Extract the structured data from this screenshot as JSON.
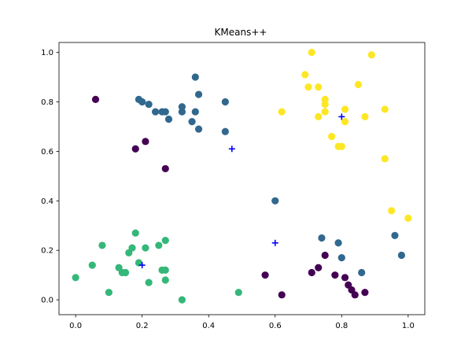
{
  "chart_data": {
    "type": "scatter",
    "title": "KMeans++",
    "xlabel": "",
    "ylabel": "",
    "xlim": [
      -0.05,
      1.05
    ],
    "ylim": [
      -0.06,
      1.04
    ],
    "x_ticks": [
      0.0,
      0.2,
      0.4,
      0.6,
      0.8,
      1.0
    ],
    "x_tick_labels": [
      "0.0",
      "0.2",
      "0.4",
      "0.6",
      "0.8",
      "1.0"
    ],
    "y_ticks": [
      0.0,
      0.2,
      0.4,
      0.6,
      0.8,
      1.0
    ],
    "y_tick_labels": [
      "0.0",
      "0.2",
      "0.4",
      "0.6",
      "0.8",
      "1.0"
    ],
    "grid": false,
    "series": [
      {
        "color": "#440154",
        "points": [
          [
            0.06,
            0.81
          ],
          [
            0.18,
            0.61
          ],
          [
            0.21,
            0.64
          ],
          [
            0.27,
            0.53
          ],
          [
            0.57,
            0.1
          ],
          [
            0.62,
            0.02
          ],
          [
            0.71,
            0.11
          ],
          [
            0.73,
            0.13
          ],
          [
            0.75,
            0.18
          ],
          [
            0.78,
            0.1
          ],
          [
            0.81,
            0.09
          ],
          [
            0.82,
            0.06
          ],
          [
            0.83,
            0.04
          ],
          [
            0.84,
            0.02
          ],
          [
            0.87,
            0.03
          ]
        ]
      },
      {
        "color": "#31688e",
        "points": [
          [
            0.19,
            0.81
          ],
          [
            0.2,
            0.8
          ],
          [
            0.22,
            0.79
          ],
          [
            0.24,
            0.76
          ],
          [
            0.26,
            0.76
          ],
          [
            0.27,
            0.76
          ],
          [
            0.28,
            0.73
          ],
          [
            0.32,
            0.78
          ],
          [
            0.32,
            0.76
          ],
          [
            0.35,
            0.72
          ],
          [
            0.36,
            0.9
          ],
          [
            0.36,
            0.76
          ],
          [
            0.37,
            0.83
          ],
          [
            0.37,
            0.69
          ],
          [
            0.45,
            0.8
          ],
          [
            0.45,
            0.68
          ],
          [
            0.6,
            0.4
          ],
          [
            0.74,
            0.25
          ],
          [
            0.79,
            0.23
          ],
          [
            0.8,
            0.17
          ],
          [
            0.86,
            0.11
          ],
          [
            0.96,
            0.26
          ],
          [
            0.98,
            0.18
          ]
        ]
      },
      {
        "color": "#35b779",
        "points": [
          [
            0.0,
            0.09
          ],
          [
            0.05,
            0.14
          ],
          [
            0.08,
            0.22
          ],
          [
            0.1,
            0.03
          ],
          [
            0.13,
            0.13
          ],
          [
            0.14,
            0.11
          ],
          [
            0.15,
            0.11
          ],
          [
            0.16,
            0.19
          ],
          [
            0.17,
            0.21
          ],
          [
            0.18,
            0.27
          ],
          [
            0.19,
            0.15
          ],
          [
            0.21,
            0.21
          ],
          [
            0.22,
            0.07
          ],
          [
            0.25,
            0.22
          ],
          [
            0.26,
            0.12
          ],
          [
            0.27,
            0.12
          ],
          [
            0.27,
            0.08
          ],
          [
            0.27,
            0.24
          ],
          [
            0.32,
            0.0
          ],
          [
            0.49,
            0.03
          ]
        ]
      },
      {
        "color": "#fde725",
        "points": [
          [
            0.62,
            0.76
          ],
          [
            0.69,
            0.91
          ],
          [
            0.7,
            0.86
          ],
          [
            0.71,
            1.0
          ],
          [
            0.73,
            0.74
          ],
          [
            0.73,
            0.86
          ],
          [
            0.75,
            0.81
          ],
          [
            0.75,
            0.79
          ],
          [
            0.75,
            0.76
          ],
          [
            0.77,
            0.66
          ],
          [
            0.79,
            0.62
          ],
          [
            0.8,
            0.62
          ],
          [
            0.81,
            0.77
          ],
          [
            0.81,
            0.72
          ],
          [
            0.85,
            0.87
          ],
          [
            0.87,
            0.74
          ],
          [
            0.89,
            0.99
          ],
          [
            0.93,
            0.77
          ],
          [
            0.93,
            0.57
          ],
          [
            0.95,
            0.36
          ],
          [
            1.0,
            0.33
          ]
        ]
      }
    ],
    "centroids": {
      "color": "#0000ff",
      "marker": "+",
      "points": [
        [
          0.47,
          0.61
        ],
        [
          0.8,
          0.74
        ],
        [
          0.6,
          0.23
        ],
        [
          0.2,
          0.14
        ]
      ]
    }
  }
}
